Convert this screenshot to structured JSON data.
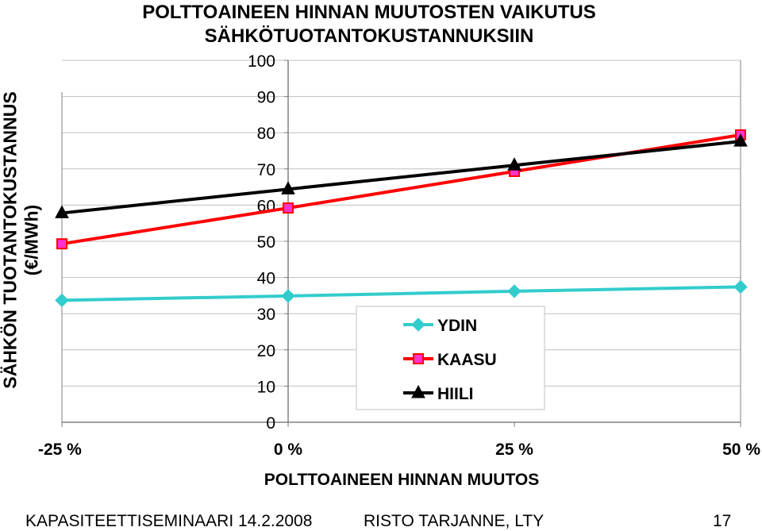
{
  "chart_data": {
    "type": "line",
    "title_line1": "POLTTOAINEEN HINNAN MUUTOSTEN VAIKUTUS",
    "title_line2": "SÄHKÖTUOTANTOKUSTANNUKSIIN",
    "ylabel_line1": "SÄHKÖN TUOTANTOKUSTANNUS",
    "ylabel_line2": "(€/MWh)",
    "xlabel": "POLTTOAINEEN HINNAN MUUTOS",
    "x": [
      -25,
      0,
      25,
      50
    ],
    "x_tick_labels": [
      "-25 %",
      "0 %",
      "25 %",
      "50 %"
    ],
    "ylim": [
      0,
      100
    ],
    "y_ticks": [
      0,
      10,
      20,
      30,
      40,
      50,
      60,
      70,
      80,
      90,
      100
    ],
    "grid": true,
    "legend_position": "bottom-right",
    "series": [
      {
        "name": "YDIN",
        "color": "#33CCCC",
        "marker": "diamond",
        "values": [
          33.7,
          34.9,
          36.2,
          37.4
        ]
      },
      {
        "name": "KAASU",
        "color": "#FF0000",
        "marker": "square",
        "values": [
          49.3,
          59.2,
          69.3,
          79.4
        ]
      },
      {
        "name": "HIILI",
        "color": "#000000",
        "marker": "triangle",
        "values": [
          57.8,
          64.4,
          71.0,
          77.6
        ]
      }
    ]
  },
  "footer": {
    "left": "KAPASITEETTISEMINAARI 14.2.2008",
    "middle": "RISTO TARJANNE, LTY",
    "page": "17"
  }
}
